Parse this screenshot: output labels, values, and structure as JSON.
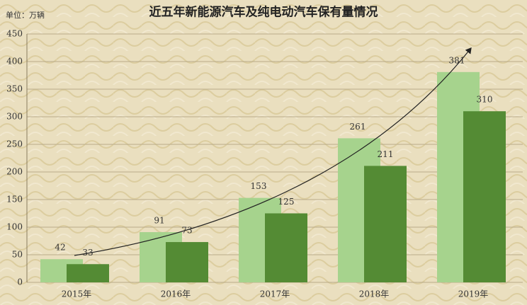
{
  "chart_data": {
    "type": "bar",
    "title": "近五年新能源汽车及纯电动汽车保有量情况",
    "unit": "单位：万辆",
    "categories": [
      "2015年",
      "2016年",
      "2017年",
      "2018年",
      "2019年"
    ],
    "series": [
      {
        "color": "#a6d38d",
        "values": [
          42,
          91,
          153,
          261,
          381
        ]
      },
      {
        "color": "#548b34",
        "values": [
          33,
          73,
          125,
          211,
          310
        ]
      }
    ],
    "ylim": [
      0,
      450
    ],
    "yticks": [
      0,
      50,
      100,
      150,
      200,
      250,
      300,
      350,
      400,
      450
    ],
    "grid": true
  }
}
